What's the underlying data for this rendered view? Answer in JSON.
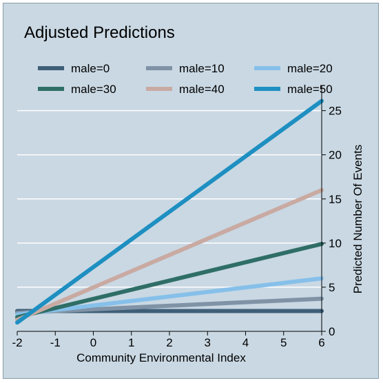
{
  "chart_data": {
    "type": "line",
    "title": "Adjusted Predictions",
    "xlabel": "Community Environmental Index",
    "ylabel": "Predicted Number Of Events",
    "x": [
      -2,
      6
    ],
    "xlim": [
      -2,
      6
    ],
    "ylim": [
      0,
      27
    ],
    "xticks": [
      -2,
      -1,
      0,
      1,
      2,
      3,
      4,
      5,
      6
    ],
    "yticks": [
      0,
      5,
      10,
      15,
      20,
      25
    ],
    "grid": true,
    "legend_position": "top",
    "y_axis_side": "right",
    "series": [
      {
        "name": "male=0",
        "color": "#3f5f78",
        "values": [
          2.3,
          2.3
        ]
      },
      {
        "name": "male=10",
        "color": "#8093a6",
        "values": [
          2.1,
          3.7
        ]
      },
      {
        "name": "male=20",
        "color": "#86c0ea",
        "values": [
          1.9,
          6.0
        ]
      },
      {
        "name": "male=30",
        "color": "#2f6e66",
        "values": [
          1.6,
          9.9
        ]
      },
      {
        "name": "male=40",
        "color": "#c9aaa2",
        "values": [
          1.3,
          16.0
        ]
      },
      {
        "name": "male=50",
        "color": "#1e8fc1",
        "values": [
          1.0,
          26.1
        ]
      }
    ]
  }
}
